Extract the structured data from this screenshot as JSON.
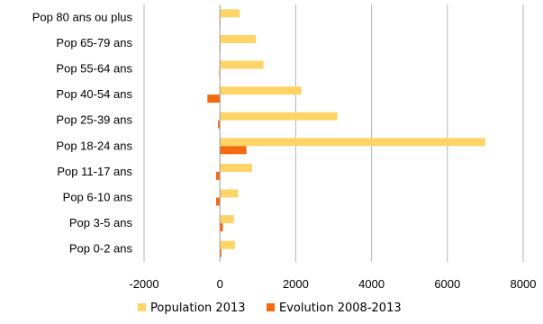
{
  "chart_data": {
    "type": "bar",
    "orientation": "horizontal",
    "categories": [
      "Pop 80 ans ou plus",
      "Pop 65-79 ans",
      "Pop 55-64 ans",
      "Pop 40-54 ans",
      "Pop 25-39 ans",
      "Pop 18-24 ans",
      "Pop 11-17 ans",
      "Pop 6-10 ans",
      "Pop 3-5 ans",
      "Pop 0-2 ans"
    ],
    "series": [
      {
        "name": "Population 2013",
        "color": "#FFD466",
        "values": [
          520,
          950,
          1150,
          2150,
          3100,
          7000,
          850,
          480,
          370,
          400
        ]
      },
      {
        "name": "Evolution 2008-2013",
        "color": "#F26B0F",
        "values": [
          -15,
          -10,
          -20,
          -330,
          -50,
          700,
          -100,
          -100,
          80,
          40
        ]
      }
    ],
    "xlim": [
      -2000,
      8000
    ],
    "xticks": [
      -2000,
      0,
      2000,
      4000,
      6000,
      8000
    ],
    "xtick_labels": [
      "-2000",
      "0",
      "2000",
      "4000",
      "6000",
      "8000"
    ],
    "grid": true,
    "legend_position": "bottom"
  }
}
